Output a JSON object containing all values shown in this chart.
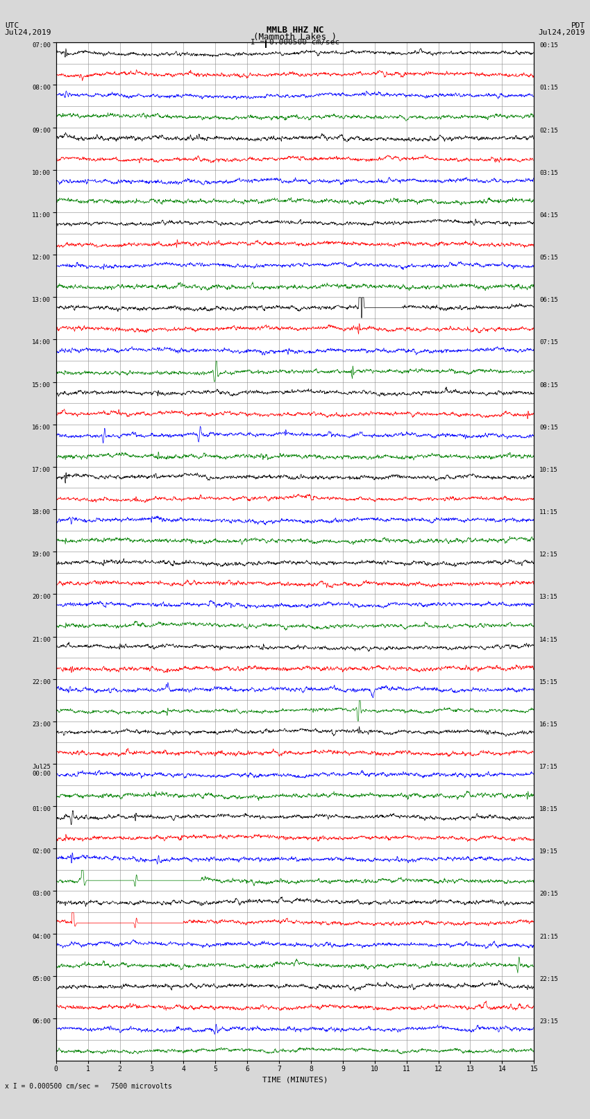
{
  "title_line1": "MMLB HHZ NC",
  "title_line2": "(Mammoth Lakes )",
  "title_scale": "I = 0.000500 cm/sec",
  "label_utc": "UTC",
  "label_date_left": "Jul24,2019",
  "label_pdt": "PDT",
  "label_date_right": "Jul24,2019",
  "xlabel": "TIME (MINUTES)",
  "footer": "x I = 0.000500 cm/sec =   7500 microvolts",
  "left_labels": [
    "07:00",
    "",
    "08:00",
    "",
    "09:00",
    "",
    "10:00",
    "",
    "11:00",
    "",
    "12:00",
    "",
    "13:00",
    "",
    "14:00",
    "",
    "15:00",
    "",
    "16:00",
    "",
    "17:00",
    "",
    "18:00",
    "",
    "19:00",
    "",
    "20:00",
    "",
    "21:00",
    "",
    "22:00",
    "",
    "23:00",
    "",
    "Jul25\n00:00",
    "",
    "01:00",
    "",
    "02:00",
    "",
    "03:00",
    "",
    "04:00",
    "",
    "05:00",
    "",
    "06:00",
    ""
  ],
  "right_labels": [
    "00:15",
    "",
    "01:15",
    "",
    "02:15",
    "",
    "03:15",
    "",
    "04:15",
    "",
    "05:15",
    "",
    "06:15",
    "",
    "07:15",
    "",
    "08:15",
    "",
    "09:15",
    "",
    "10:15",
    "",
    "11:15",
    "",
    "12:15",
    "",
    "13:15",
    "",
    "14:15",
    "",
    "15:15",
    "",
    "16:15",
    "",
    "17:15",
    "",
    "18:15",
    "",
    "19:15",
    "",
    "20:15",
    "",
    "21:15",
    "",
    "22:15",
    "",
    "23:15",
    ""
  ],
  "n_rows": 48,
  "n_points": 1800,
  "x_min": 0,
  "x_max": 15,
  "colors_cycle": [
    "black",
    "red",
    "blue",
    "green"
  ],
  "bg_color": "#d8d8d8",
  "plot_bg": "#ffffff",
  "grid_color": "#888888",
  "title_fontsize": 9,
  "label_fontsize": 7,
  "tick_fontsize": 7
}
